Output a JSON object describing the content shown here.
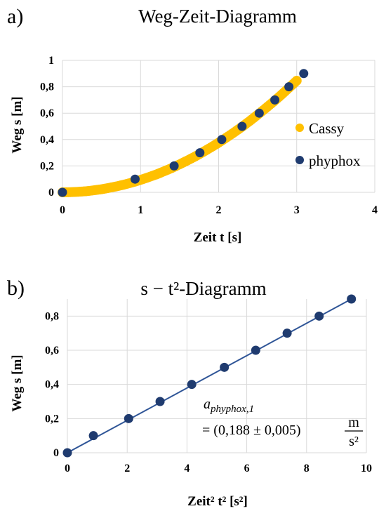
{
  "chart_data": [
    {
      "panel_label": "a)",
      "type": "scatter",
      "title": "Weg-Zeit-Diagramm",
      "xlabel": "Zeit t [s]",
      "ylabel": "Weg s [m]",
      "xlim": [
        0,
        4
      ],
      "ylim": [
        0,
        1
      ],
      "xticks": [
        "0",
        "1",
        "2",
        "3",
        "4"
      ],
      "yticks": [
        "0",
        "0,2",
        "0,4",
        "0,6",
        "0,8",
        "1"
      ],
      "grid": true,
      "legend_position": "right",
      "series": [
        {
          "name": "Cassy",
          "color": "#ffc000",
          "x": [
            0,
            0.1,
            0.2,
            0.3,
            0.4,
            0.5,
            0.6,
            0.7,
            0.8,
            0.9,
            1.0,
            1.1,
            1.2,
            1.3,
            1.4,
            1.5,
            1.6,
            1.7,
            1.8,
            1.9,
            2.0,
            2.1,
            2.2,
            2.3,
            2.4,
            2.5,
            2.6,
            2.7,
            2.8,
            2.9,
            3.0
          ],
          "y": [
            0,
            0.001,
            0.004,
            0.008,
            0.015,
            0.023,
            0.034,
            0.046,
            0.06,
            0.076,
            0.094,
            0.114,
            0.135,
            0.159,
            0.184,
            0.212,
            0.241,
            0.272,
            0.305,
            0.34,
            0.376,
            0.415,
            0.455,
            0.497,
            0.541,
            0.588,
            0.636,
            0.685,
            0.737,
            0.791,
            0.846
          ]
        },
        {
          "name": "phyphox",
          "color": "#1f3b6f",
          "x": [
            0,
            0.93,
            1.43,
            1.76,
            2.04,
            2.3,
            2.52,
            2.72,
            2.9,
            3.09
          ],
          "y": [
            0,
            0.1,
            0.2,
            0.3,
            0.4,
            0.5,
            0.6,
            0.7,
            0.8,
            0.9
          ]
        }
      ]
    },
    {
      "panel_label": "b)",
      "type": "scatter",
      "title": "s − t²-Diagramm",
      "xlabel": "Zeit² t² [s²]",
      "ylabel": "Weg s [m]",
      "xlim": [
        0,
        10
      ],
      "ylim": [
        0,
        0.9
      ],
      "xticks": [
        "0",
        "2",
        "4",
        "6",
        "8",
        "10"
      ],
      "yticks": [
        "0",
        "0,2",
        "0,4",
        "0,6",
        "0,8"
      ],
      "grid": true,
      "series": [
        {
          "name": "phyphox",
          "color": "#1f3b6f",
          "x": [
            0,
            0.87,
            2.05,
            3.1,
            4.16,
            5.25,
            6.3,
            7.35,
            8.42,
            9.5
          ],
          "y": [
            0,
            0.1,
            0.2,
            0.3,
            0.4,
            0.5,
            0.6,
            0.7,
            0.8,
            0.9
          ]
        }
      ],
      "trendline": {
        "x": [
          0,
          9.5
        ],
        "y": [
          0,
          0.9
        ],
        "color": "#2f5597"
      },
      "annotation": {
        "line1": "a",
        "line1_sub": "phyphox,1",
        "line2": "= (0,188  ± 0,005)",
        "unit_num": "m",
        "unit_den": "s²"
      }
    }
  ]
}
